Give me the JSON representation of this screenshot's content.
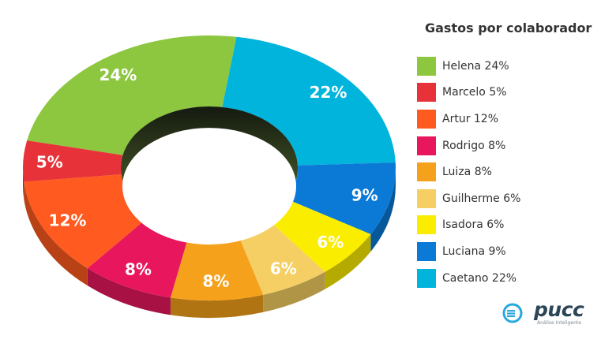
{
  "chart_data": {
    "type": "pie",
    "title": "Gastos por colaborador",
    "slices": [
      {
        "name": "Helena",
        "value": 24,
        "label": "24%",
        "legend": "Helena 24%",
        "color": "#8dc63f"
      },
      {
        "name": "Caetano",
        "value": 22,
        "label": "22%",
        "legend": "Caetano 22%",
        "color": "#00b4dc"
      },
      {
        "name": "Luciana",
        "value": 9,
        "label": "9%",
        "legend": "Luciana 9%",
        "color": "#0a7ad6"
      },
      {
        "name": "Isadora",
        "value": 6,
        "label": "6%",
        "legend": "Isadora 6%",
        "color": "#fbed00"
      },
      {
        "name": "Guilherme",
        "value": 6,
        "label": "6%",
        "legend": "Guilherme 6%",
        "color": "#f5cf63"
      },
      {
        "name": "Luiza",
        "value": 8,
        "label": "8%",
        "legend": "Luiza 8%",
        "color": "#f6a11b"
      },
      {
        "name": "Rodrigo",
        "value": 8,
        "label": "8%",
        "legend": "Rodrigo 8%",
        "color": "#e8175d"
      },
      {
        "name": "Artur",
        "value": 12,
        "label": "12%",
        "legend": "Artur 12%",
        "color": "#ff5a1f"
      },
      {
        "name": "Marcelo",
        "value": 5,
        "label": "5%",
        "legend": "Marcelo 5%",
        "color": "#e8323a"
      }
    ],
    "legend_order": [
      "Helena",
      "Marcelo",
      "Artur",
      "Rodrigo",
      "Luiza",
      "Guilherme",
      "Isadora",
      "Luciana",
      "Caetano"
    ],
    "legend_position": "right",
    "style": "3d-donut"
  },
  "logo": {
    "name": "pucc",
    "tagline": "Análise Inteligente",
    "color": "#2d4656",
    "mark_color": "#29a8df"
  }
}
